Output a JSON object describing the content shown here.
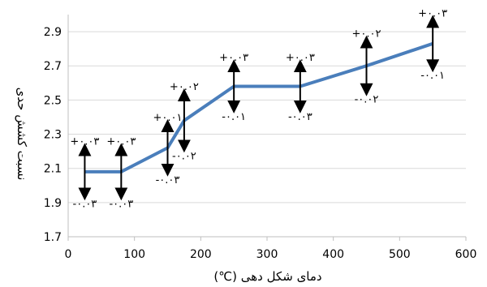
{
  "chart_data": {
    "type": "line",
    "xlabel": "دمای شکل دهی (℃)",
    "ylabel": "نسبت کشش حدی",
    "xlim": [
      0,
      600
    ],
    "ylim": [
      1.7,
      3.0
    ],
    "x_ticks": [
      "0",
      "100",
      "200",
      "300",
      "400",
      "500",
      "600"
    ],
    "y_ticks": [
      "1.7",
      "1.9",
      "2.1",
      "2.3",
      "2.5",
      "2.7",
      "2.9"
    ],
    "grid": "horizontal",
    "line_color": "#4a7ebb",
    "series": [
      {
        "x": [
          25,
          80,
          150,
          175,
          250,
          350,
          450,
          550
        ],
        "values": [
          2.08,
          2.08,
          2.22,
          2.38,
          2.58,
          2.58,
          2.7,
          2.83
        ],
        "err_plus": [
          "+۰.۰۳",
          "+۰.۰۳",
          "+۰.۰۱",
          "+۰.۰۲",
          "+۰.۰۳",
          "+۰.۰۳",
          "+۰.۰۲",
          "+۰.۰۳"
        ],
        "err_minus": [
          "-۰.۰۳",
          "-۰.۰۳",
          "-۰.۰۳",
          "-۰.۰۲",
          "-۰.۰۱",
          "-۰.۰۳",
          "-۰.۰۲",
          "-۰.۰۱"
        ],
        "err_plus_value": [
          0.13,
          0.13,
          0.13,
          0.15,
          0.12,
          0.12,
          0.14,
          0.13
        ],
        "err_minus_value": [
          0.13,
          0.13,
          0.13,
          0.15,
          0.12,
          0.12,
          0.14,
          0.13
        ]
      }
    ]
  }
}
